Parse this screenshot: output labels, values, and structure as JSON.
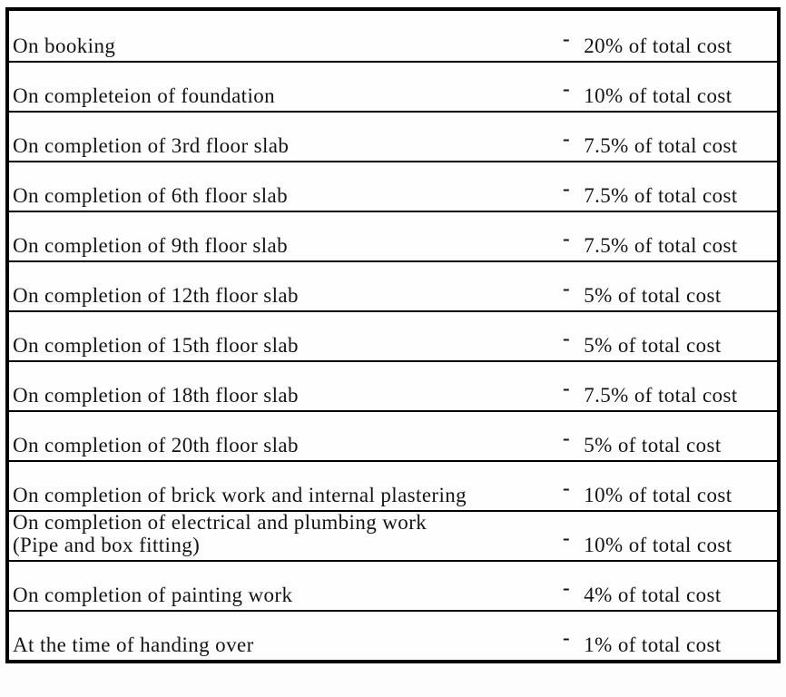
{
  "document": {
    "type": "payment-schedule-table",
    "colors": {
      "text": "#141414",
      "border": "#000000",
      "background": "#fefefe"
    },
    "currency_mark": "-",
    "rows": [
      {
        "milestone": "On booking",
        "amount": "20% of total cost"
      },
      {
        "milestone": "On completeion of foundation",
        "amount": "10% of total cost"
      },
      {
        "milestone": "On completion of 3rd floor slab",
        "amount": "7.5% of total cost"
      },
      {
        "milestone": "On completion of 6th floor slab",
        "amount": "7.5% of total cost"
      },
      {
        "milestone": "On completion of 9th floor slab",
        "amount": "7.5% of total cost"
      },
      {
        "milestone": "On completion of 12th floor slab",
        "amount": "5% of total cost"
      },
      {
        "milestone": "On completion of 15th floor slab",
        "amount": "5% of total cost"
      },
      {
        "milestone": "On completion of 18th floor slab",
        "amount": "7.5% of total cost"
      },
      {
        "milestone": "On completion of 20th floor slab",
        "amount": "5% of total cost"
      },
      {
        "milestone": "On completion of brick work and internal plastering",
        "amount": "10% of total cost"
      },
      {
        "milestone": "On completion of electrical and plumbing work",
        "milestone_line2": "(Pipe and box fitting)",
        "amount": "10% of total cost"
      },
      {
        "milestone": "On completion of painting work",
        "amount": "4% of total cost"
      },
      {
        "milestone": "At the time of handing over",
        "amount": "1% of total cost"
      }
    ]
  }
}
